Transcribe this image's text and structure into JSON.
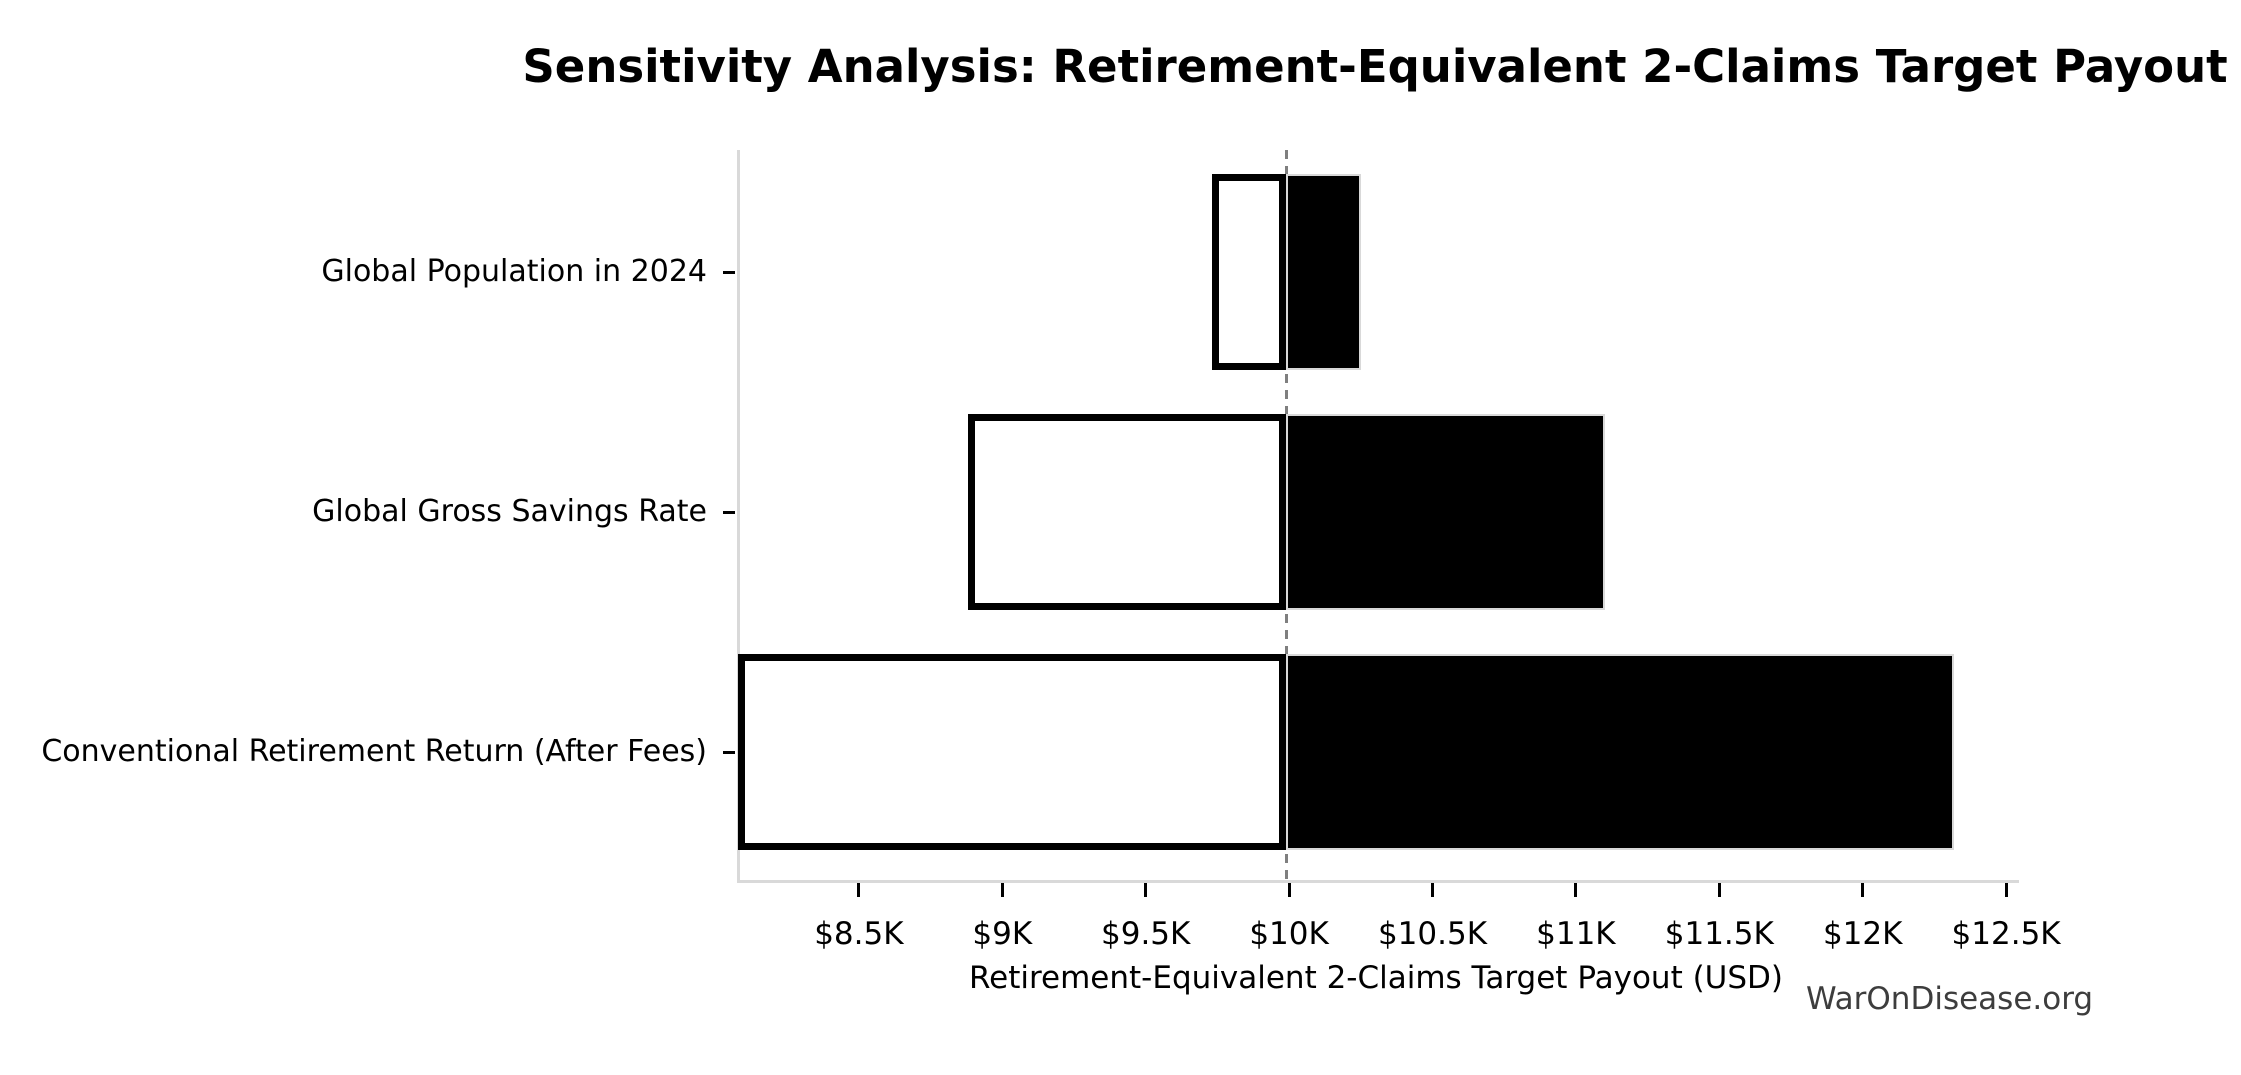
{
  "watermark": "WarOnDisease.org",
  "chart_data": {
    "type": "bar",
    "subtype": "tornado-sensitivity",
    "orientation": "horizontal",
    "title": "Sensitivity Analysis: Retirement-Equivalent 2-Claims Target Payout",
    "xlabel": "Retirement-Equivalent 2-Claims Target Payout (USD)",
    "ylabel": "",
    "grid": false,
    "legend": "none",
    "base_value": 9990,
    "xlim": [
      8075,
      12545
    ],
    "categories": [
      "Global Population in 2024",
      "Global Gross Savings Rate",
      "Conventional Retirement Return (After Fees)"
    ],
    "series": [
      {
        "name": "low_case",
        "values": [
          9730,
          8880,
          8080
        ]
      },
      {
        "name": "high_case",
        "values": [
          10250,
          11100,
          12320
        ]
      }
    ],
    "x_ticks": [
      {
        "value": 8500,
        "label": "$8.5K"
      },
      {
        "value": 9000,
        "label": "$9K"
      },
      {
        "value": 9500,
        "label": "$9.5K"
      },
      {
        "value": 10000,
        "label": "$10K"
      },
      {
        "value": 10500,
        "label": "$10.5K"
      },
      {
        "value": 11000,
        "label": "$11K"
      },
      {
        "value": 11500,
        "label": "$11.5K"
      },
      {
        "value": 12000,
        "label": "$12K"
      },
      {
        "value": 12500,
        "label": "$12.5K"
      }
    ],
    "colors": {
      "low_bar_fill": "#ffffff",
      "low_bar_edge": "#000000",
      "high_bar_fill": "#000000",
      "high_bar_edge": "#d9d9d9",
      "baseline": "#7f7f7f",
      "spine": "#d9d9d9",
      "tick": "#000000",
      "text": "#000000",
      "watermark_text": "#3d3d3d",
      "background": "#ffffff"
    }
  }
}
